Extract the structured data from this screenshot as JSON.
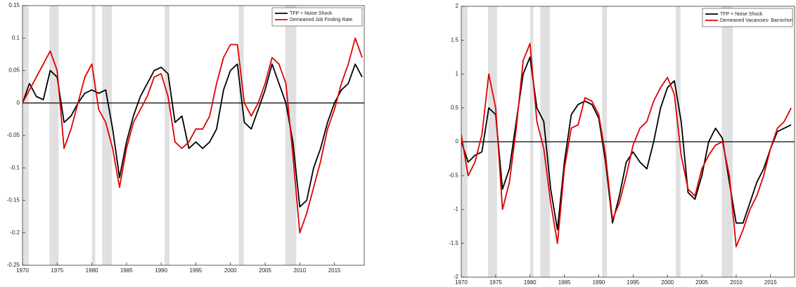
{
  "chart_data": [
    {
      "type": "line",
      "x": [
        1970,
        1971,
        1972,
        1973,
        1974,
        1975,
        1976,
        1977,
        1978,
        1979,
        1980,
        1981,
        1982,
        1983,
        1984,
        1985,
        1986,
        1987,
        1988,
        1989,
        1990,
        1991,
        1992,
        1993,
        1994,
        1995,
        1996,
        1997,
        1998,
        1999,
        2000,
        2001,
        2002,
        2003,
        2004,
        2005,
        2006,
        2007,
        2008,
        2009,
        2010,
        2011,
        2012,
        2013,
        2014,
        2015,
        2016,
        2017,
        2018,
        2019
      ],
      "series": [
        {
          "name": "TFP + Noise Shock",
          "color": "#000000",
          "values": [
            0,
            0.03,
            0.01,
            0.005,
            0.05,
            0.04,
            -0.03,
            -0.02,
            0,
            0.015,
            0.02,
            0.015,
            0.02,
            -0.04,
            -0.115,
            -0.06,
            -0.02,
            0.01,
            0.03,
            0.05,
            0.055,
            0.045,
            -0.03,
            -0.02,
            -0.07,
            -0.06,
            -0.07,
            -0.06,
            -0.04,
            0.02,
            0.05,
            0.06,
            -0.03,
            -0.04,
            -0.01,
            0.02,
            0.06,
            0.03,
            0,
            -0.06,
            -0.16,
            -0.15,
            -0.1,
            -0.07,
            -0.03,
            0,
            0.02,
            0.03,
            0.06,
            0.04
          ]
        },
        {
          "name": "Demeaned Job Finding Rate",
          "color": "#e00000",
          "values": [
            0,
            0.02,
            0.04,
            0.06,
            0.08,
            0.05,
            -0.07,
            -0.04,
            0,
            0.04,
            0.06,
            -0.01,
            -0.03,
            -0.07,
            -0.13,
            -0.07,
            -0.03,
            -0.01,
            0.01,
            0.04,
            0.045,
            0.01,
            -0.06,
            -0.07,
            -0.06,
            -0.04,
            -0.04,
            -0.02,
            0.03,
            0.07,
            0.09,
            0.09,
            0,
            -0.02,
            0,
            0.03,
            0.07,
            0.06,
            0.03,
            -0.08,
            -0.2,
            -0.17,
            -0.13,
            -0.09,
            -0.04,
            -0.01,
            0.03,
            0.06,
            0.1,
            0.07
          ]
        }
      ],
      "recessions": [
        [
          1969.9,
          1970.9
        ],
        [
          1973.9,
          1975.2
        ],
        [
          1980,
          1980.5
        ],
        [
          1981.5,
          1982.9
        ],
        [
          1990.5,
          1991.2
        ],
        [
          2001.2,
          2001.9
        ],
        [
          2007.9,
          2009.5
        ]
      ],
      "xlim": [
        1970,
        2019.3
      ],
      "xticks": [
        1970,
        1975,
        1980,
        1985,
        1990,
        1995,
        2000,
        2005,
        2010,
        2015
      ],
      "ylim": [
        -0.25,
        0.15
      ],
      "yticks": [
        -0.25,
        -0.2,
        -0.15,
        -0.1,
        -0.05,
        0,
        0.05,
        0.1,
        0.15
      ],
      "zero_line": true,
      "legend": "top-right"
    },
    {
      "type": "line",
      "x": [
        1970,
        1971,
        1972,
        1973,
        1974,
        1975,
        1976,
        1977,
        1978,
        1979,
        1980,
        1981,
        1982,
        1983,
        1984,
        1985,
        1986,
        1987,
        1988,
        1989,
        1990,
        1991,
        1992,
        1993,
        1994,
        1995,
        1996,
        1997,
        1998,
        1999,
        2000,
        2001,
        2002,
        2003,
        2004,
        2005,
        2006,
        2007,
        2008,
        2009,
        2010,
        2011,
        2012,
        2013,
        2014,
        2015,
        2016,
        2017,
        2018
      ],
      "series": [
        {
          "name": "TFP + Noise Shock",
          "color": "#000000",
          "values": [
            0,
            -0.3,
            -0.2,
            -0.15,
            0.5,
            0.4,
            -0.7,
            -0.4,
            0.3,
            1,
            1.25,
            0.5,
            0.3,
            -0.7,
            -1.3,
            -0.3,
            0.4,
            0.55,
            0.6,
            0.55,
            0.35,
            -0.3,
            -1.2,
            -0.8,
            -0.3,
            -0.15,
            -0.3,
            -0.4,
            0,
            0.5,
            0.8,
            0.9,
            0.3,
            -0.75,
            -0.85,
            -0.5,
            0,
            0.2,
            0.05,
            -0.6,
            -1.2,
            -1.2,
            -0.9,
            -0.6,
            -0.4,
            -0.1,
            0.15,
            0.2,
            0.25
          ]
        },
        {
          "name": "Demeaned Vacancies- Barnichon",
          "color": "#e00000",
          "values": [
            0.1,
            -0.5,
            -0.3,
            0.1,
            1,
            0.5,
            -1,
            -0.6,
            0.2,
            1.2,
            1.45,
            0.3,
            -0.1,
            -0.9,
            -1.5,
            -0.4,
            0.2,
            0.25,
            0.65,
            0.6,
            0.4,
            -0.2,
            -1.15,
            -0.9,
            -0.5,
            -0.05,
            0.2,
            0.3,
            0.6,
            0.8,
            0.95,
            0.7,
            -0.2,
            -0.7,
            -0.8,
            -0.4,
            -0.2,
            -0.05,
            0,
            -0.5,
            -1.55,
            -1.3,
            -1,
            -0.8,
            -0.5,
            -0.1,
            0.2,
            0.3,
            0.5
          ]
        }
      ],
      "recessions": [
        [
          1969.9,
          1970.9
        ],
        [
          1973.9,
          1975.2
        ],
        [
          1980,
          1980.5
        ],
        [
          1981.5,
          1982.9
        ],
        [
          1990.5,
          1991.2
        ],
        [
          2001.2,
          2001.9
        ],
        [
          2007.9,
          2009.5
        ]
      ],
      "xlim": [
        1970,
        2018.5
      ],
      "xticks": [
        1970,
        1975,
        1980,
        1985,
        1990,
        1995,
        2000,
        2005,
        2010,
        2015
      ],
      "ylim": [
        -2,
        2
      ],
      "yticks": [
        -2,
        -1.5,
        -1,
        -0.5,
        0,
        0.5,
        1,
        1.5,
        2
      ],
      "zero_line": true,
      "legend": "top-right"
    }
  ]
}
